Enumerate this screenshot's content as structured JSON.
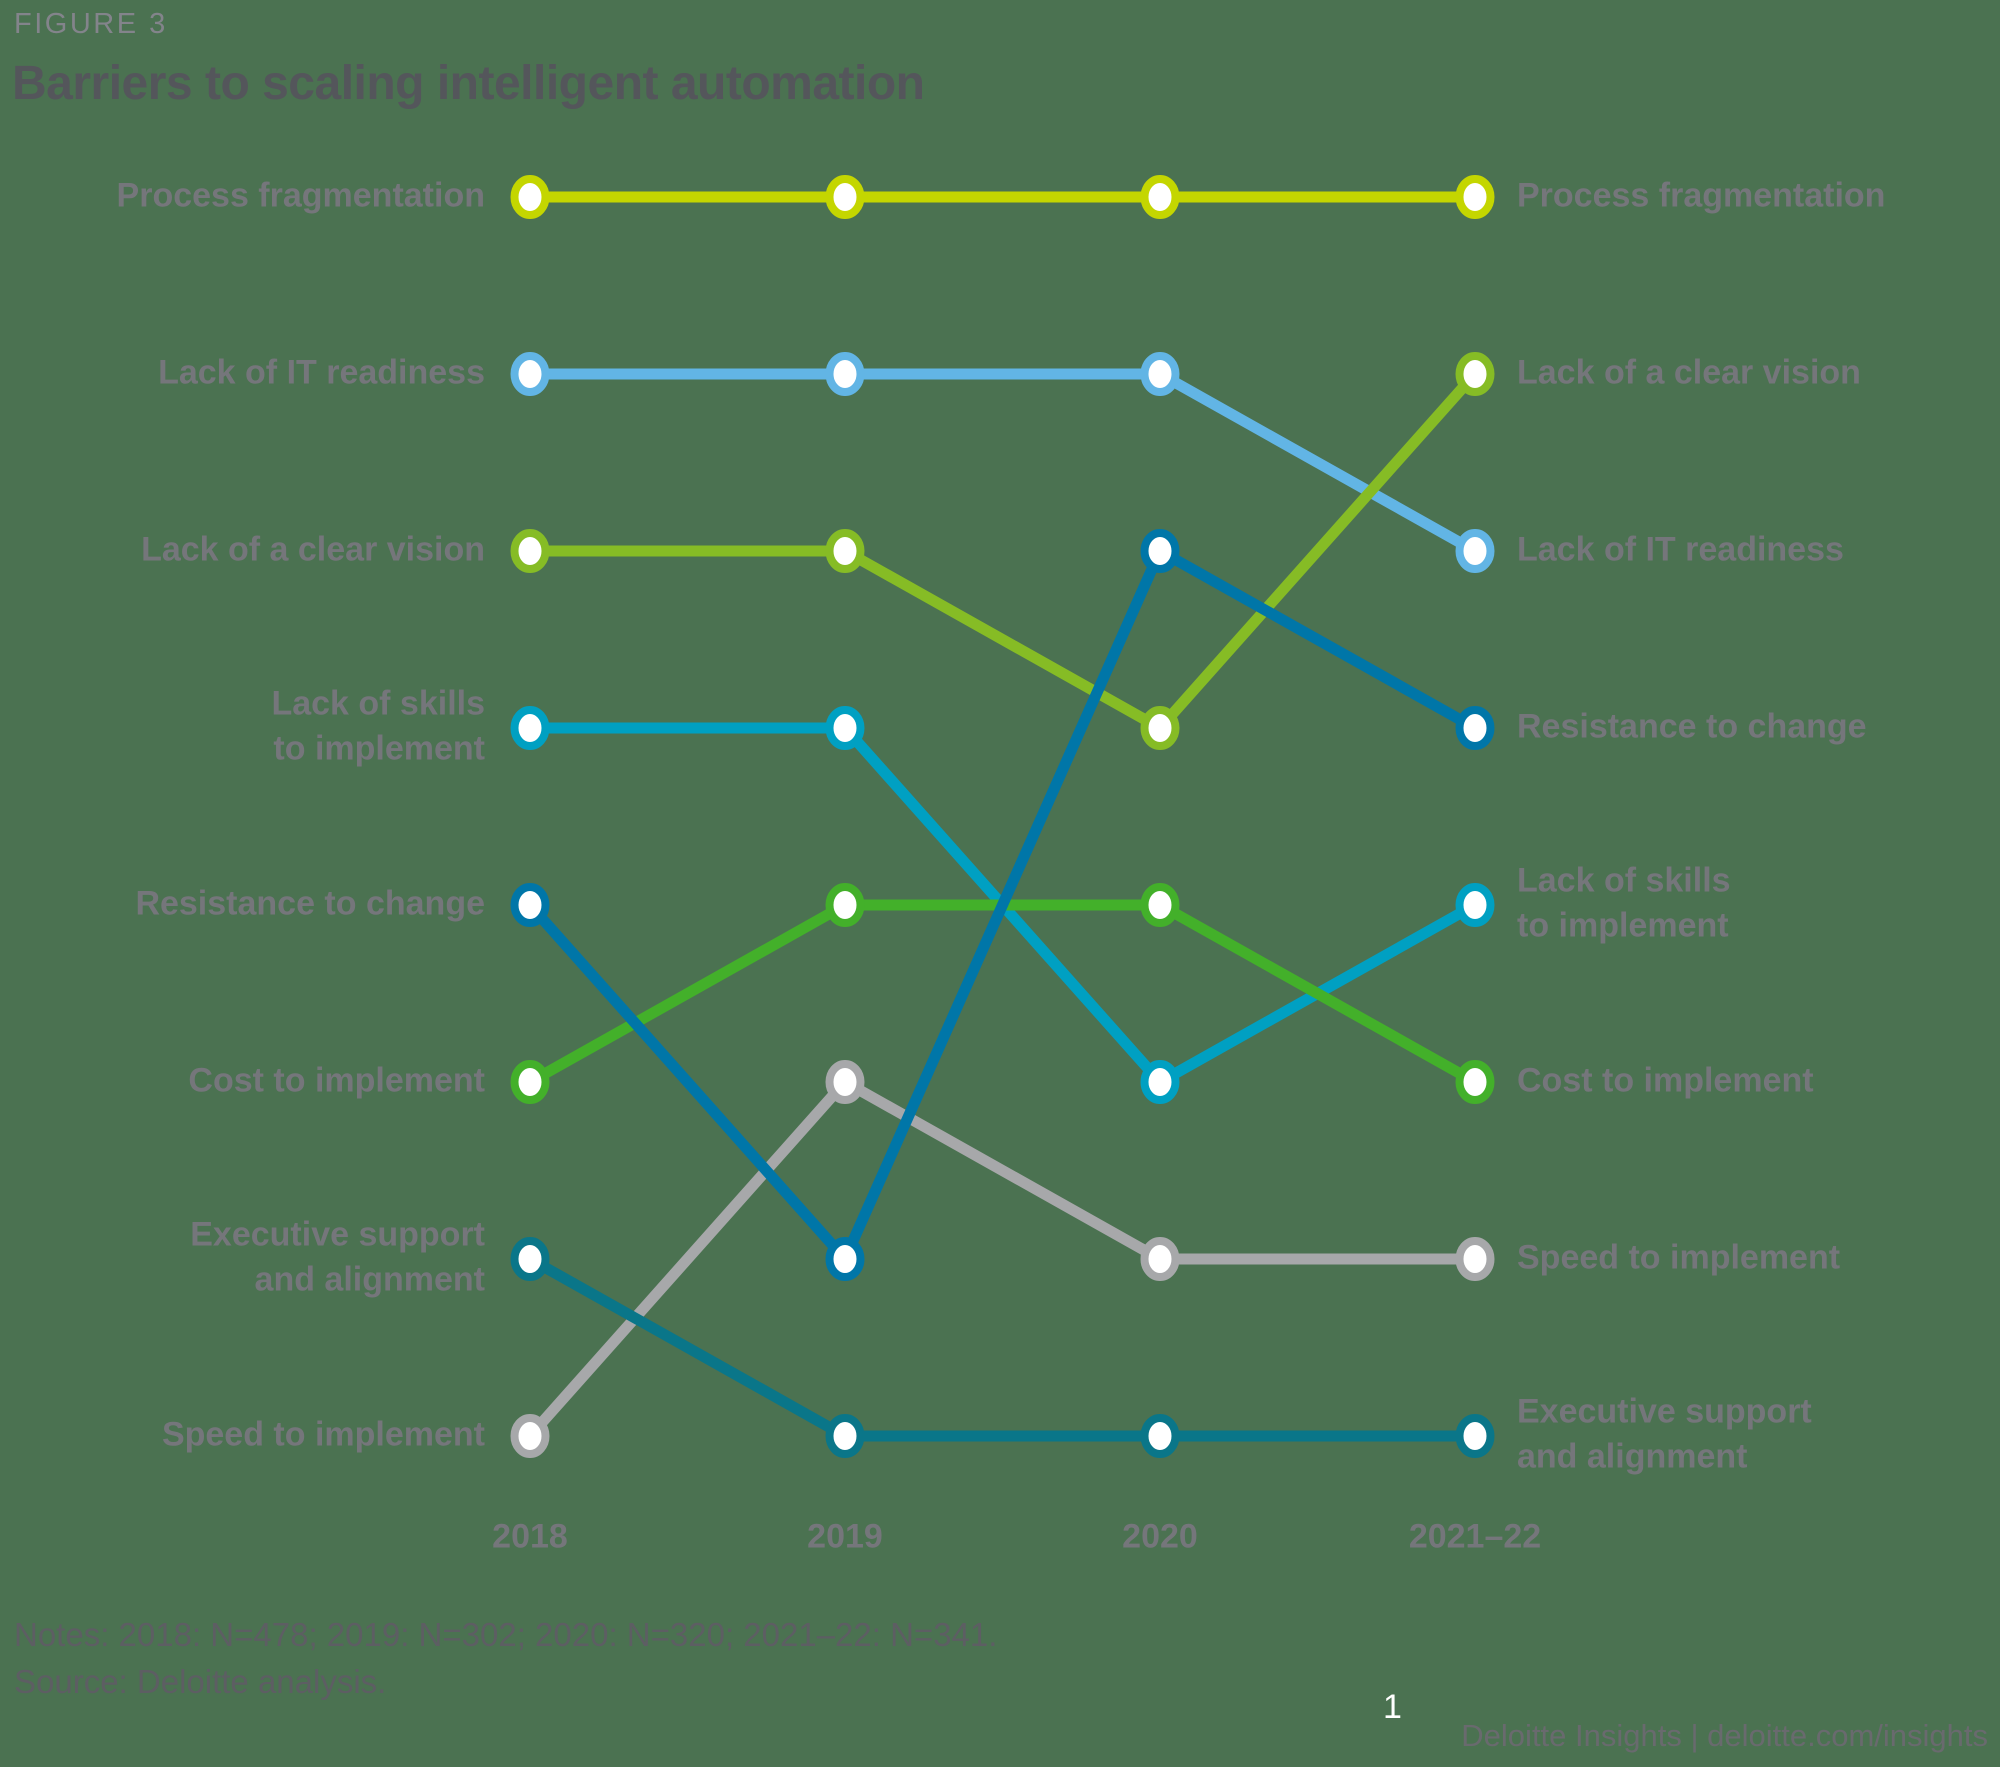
{
  "figure_label": "FIGURE 3",
  "title": "Barriers to scaling intelligent automation",
  "notes": "Notes: 2018: N=478; 2019: N=302; 2020: N=320; 2021–22: N=341.",
  "source": "Source: Deloitte analysis.",
  "page_number": "1",
  "footer": "Deloitte Insights | deloitte.com/insights",
  "ui_colors": {
    "background": "#4B7251",
    "title": "#54565B",
    "figure_label": "#83848B",
    "row_label": "#75767B",
    "notes": "#5D5E63",
    "footer": "#696A6E",
    "page_number": "#FFFFFF",
    "marker_fill": "#FFFFFF"
  },
  "chart_data": {
    "type": "line",
    "subtype": "bump-ranking",
    "x": [
      "2018",
      "2019",
      "2020",
      "2021–22"
    ],
    "rank_axis": "1 = top-ranked barrier (rows top to bottom = rank 1 to 8)",
    "grid": false,
    "legend_position": "row labels on both sides of chart",
    "series": [
      {
        "id": "process-fragmentation",
        "left_label": "Process fragmentation",
        "right_label": "Process fragmentation",
        "color": "#C4D600",
        "ranks": [
          1,
          1,
          1,
          1
        ]
      },
      {
        "id": "lack-of-it-readiness",
        "left_label": "Lack of IT readiness",
        "right_label": "Lack of IT readiness",
        "color": "#62B5E5",
        "ranks": [
          2,
          2,
          2,
          3
        ]
      },
      {
        "id": "lack-of-a-clear-vision",
        "left_label": "Lack of a clear vision",
        "right_label": "Lack of a clear vision",
        "color": "#86BC25",
        "ranks": [
          3,
          3,
          4,
          2
        ]
      },
      {
        "id": "lack-of-skills-to-implement",
        "left_label": "Lack of skills\nto implement",
        "right_label": "Lack of skills\nto implement",
        "color": "#00A0C2",
        "ranks": [
          4,
          4,
          6,
          5
        ]
      },
      {
        "id": "resistance-to-change",
        "left_label": "Resistance to change",
        "right_label": "Resistance to change",
        "color": "#0076A8",
        "ranks": [
          5,
          7,
          3,
          4
        ]
      },
      {
        "id": "cost-to-implement",
        "left_label": "Cost to implement",
        "right_label": "Cost to implement",
        "color": "#43B02A",
        "ranks": [
          6,
          5,
          5,
          6
        ]
      },
      {
        "id": "executive-support-and-alignment",
        "left_label": "Executive support\nand alignment",
        "right_label": "Executive support\nand alignment",
        "color": "#0A7689",
        "ranks": [
          7,
          8,
          8,
          8
        ]
      },
      {
        "id": "speed-to-implement",
        "left_label": "Speed to implement",
        "right_label": "Speed to implement",
        "color": "#A7A8AA",
        "ranks": [
          8,
          6,
          7,
          7
        ]
      }
    ],
    "z_order": [
      "speed-to-implement",
      "executive-support-and-alignment",
      "lack-of-skills-to-implement",
      "cost-to-implement",
      "lack-of-it-readiness",
      "lack-of-a-clear-vision",
      "resistance-to-change",
      "process-fragmentation"
    ]
  }
}
